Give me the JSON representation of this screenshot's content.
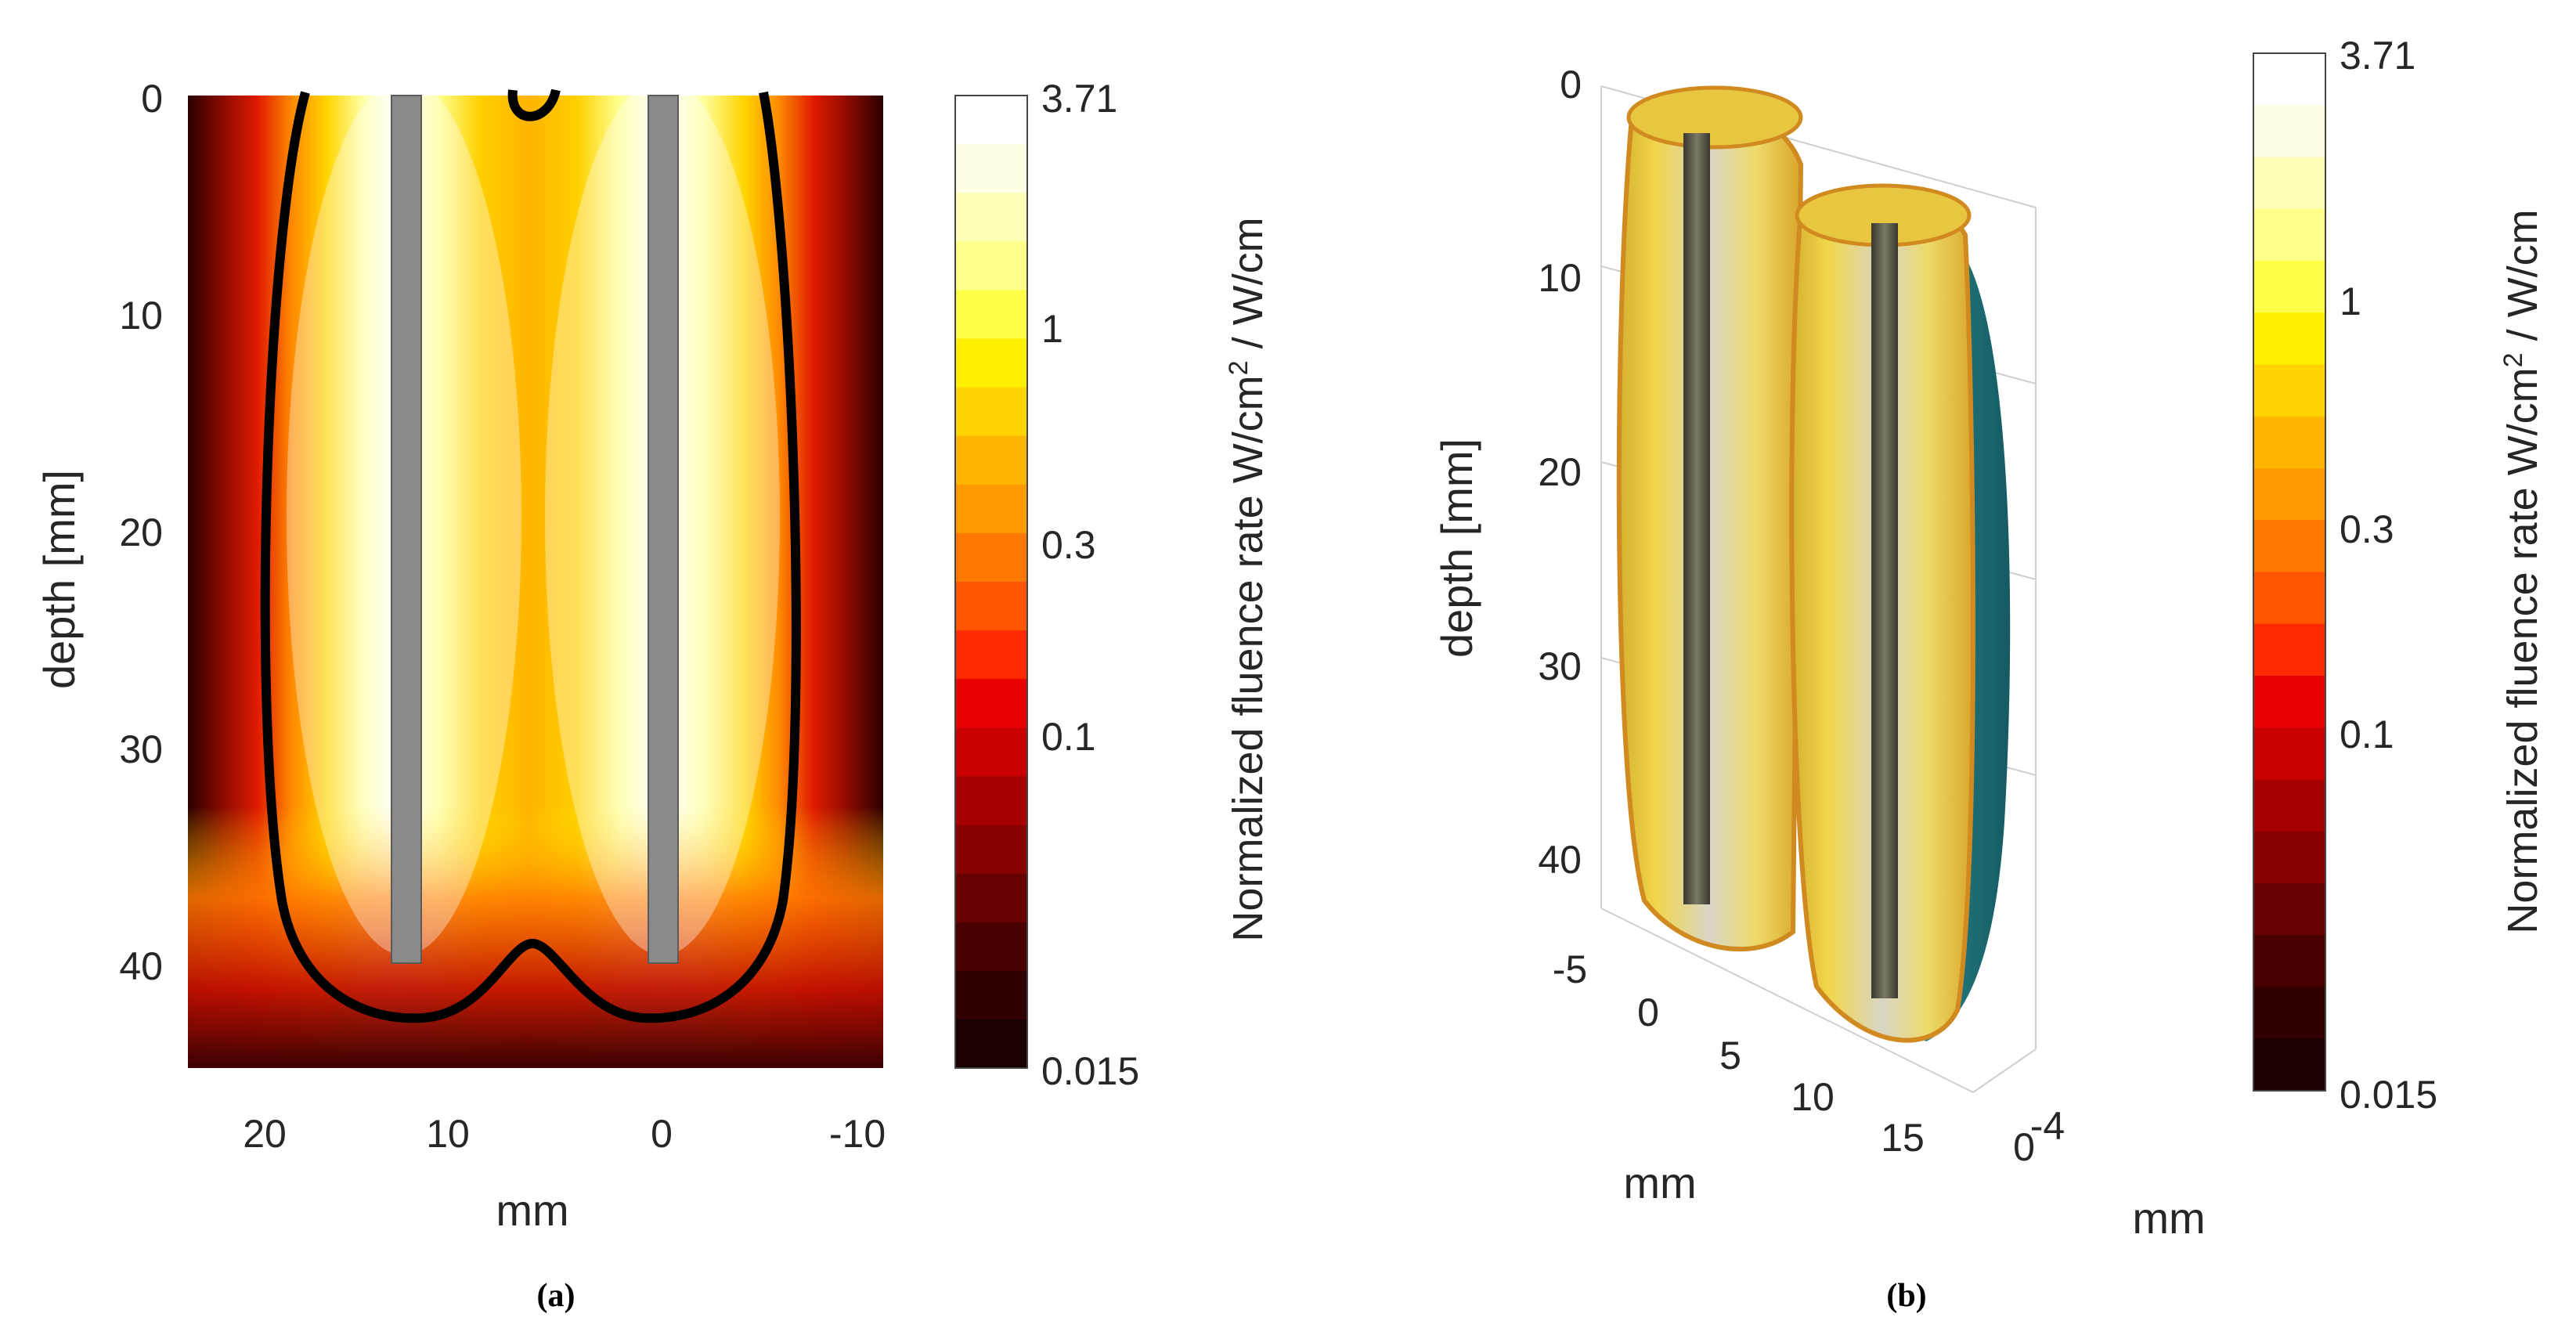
{
  "chart_data": [
    {
      "type": "heatmap",
      "panel_label": "(a)",
      "xlabel": "mm",
      "ylabel": "depth [mm]",
      "x_range": [
        22,
        -12
      ],
      "y_range": [
        0,
        45
      ],
      "x_ticks": [
        "20",
        "10",
        "0",
        "-10"
      ],
      "y_ticks": [
        "0",
        "10",
        "20",
        "30",
        "40"
      ],
      "colorbar": {
        "label_prefix": "Normalized fluence rate W/cm",
        "label_sup": "2",
        "label_suffix": " / W/cm",
        "scale": "log",
        "min": 0.015,
        "max": 3.71,
        "tick_labels": [
          "3.71",
          "1",
          "0.3",
          "0.1",
          "0.015"
        ]
      },
      "fibers": [
        {
          "x_center": 12,
          "depth_start": 0,
          "depth_end": 40
        },
        {
          "x_center": 0,
          "depth_start": 0,
          "depth_end": 40
        }
      ],
      "contour": "black isodose line enclosing both fibers, reaching depth ~42 mm"
    },
    {
      "type": "3d-surface",
      "panel_label": "(b)",
      "xlabel": "mm",
      "ylabel": "depth [mm]",
      "zlabel": "mm",
      "depth_ticks": [
        "0",
        "10",
        "20",
        "30",
        "40"
      ],
      "x_ticks": [
        "-5",
        "0",
        "5",
        "10",
        "15"
      ],
      "z_ticks": [
        "-4",
        "0"
      ],
      "colorbar": {
        "label_prefix": "Normalized fluence rate W/cm",
        "label_sup": "2",
        "label_suffix": " / W/cm",
        "scale": "log",
        "min": 0.015,
        "max": 3.71,
        "tick_labels": [
          "3.71",
          "1",
          "0.3",
          "0.1",
          "0.015"
        ]
      }
    }
  ],
  "colors": {
    "fiber_gray": "#8a8a8a",
    "contour": "#000000",
    "teal_surface": "#1e6e78"
  }
}
